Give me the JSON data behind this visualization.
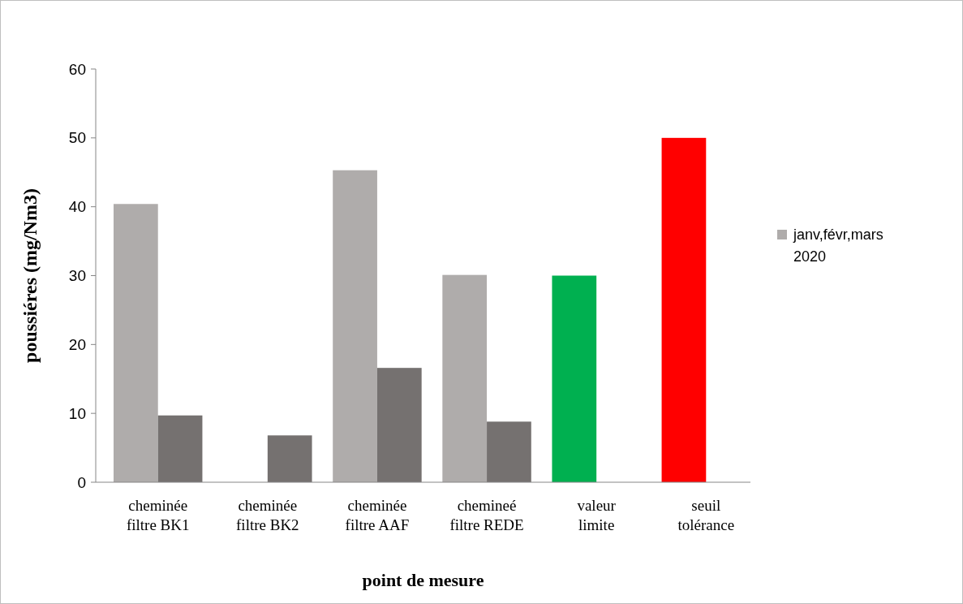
{
  "chart_data": {
    "type": "bar",
    "categories": [
      "cheminée\nfiltre BK1",
      "cheminée\nfiltre BK2",
      "cheminée\nfiltre AAF",
      "chemineé\nfiltre REDE",
      "valeur\nlimite",
      "seuil\ntolérance"
    ],
    "series": [
      {
        "name": "janv,févr,mars 2020",
        "color": "#afacab",
        "colors": [
          "#afacab",
          null,
          "#afacab",
          "#afacab",
          "#00b050",
          "#ff0000"
        ],
        "values": [
          40.4,
          null,
          45.3,
          30.1,
          30,
          50
        ]
      },
      {
        "color": "#757170",
        "values": [
          9.7,
          6.8,
          16.6,
          8.8,
          null,
          null
        ]
      }
    ],
    "xlabel": "point de mesure",
    "ylabel": "poussiéres (mg/Nm3)",
    "ylim": [
      0,
      60
    ],
    "yticks": [
      0,
      10,
      20,
      30,
      40,
      50,
      60
    ],
    "grid": false,
    "legend": "right"
  }
}
